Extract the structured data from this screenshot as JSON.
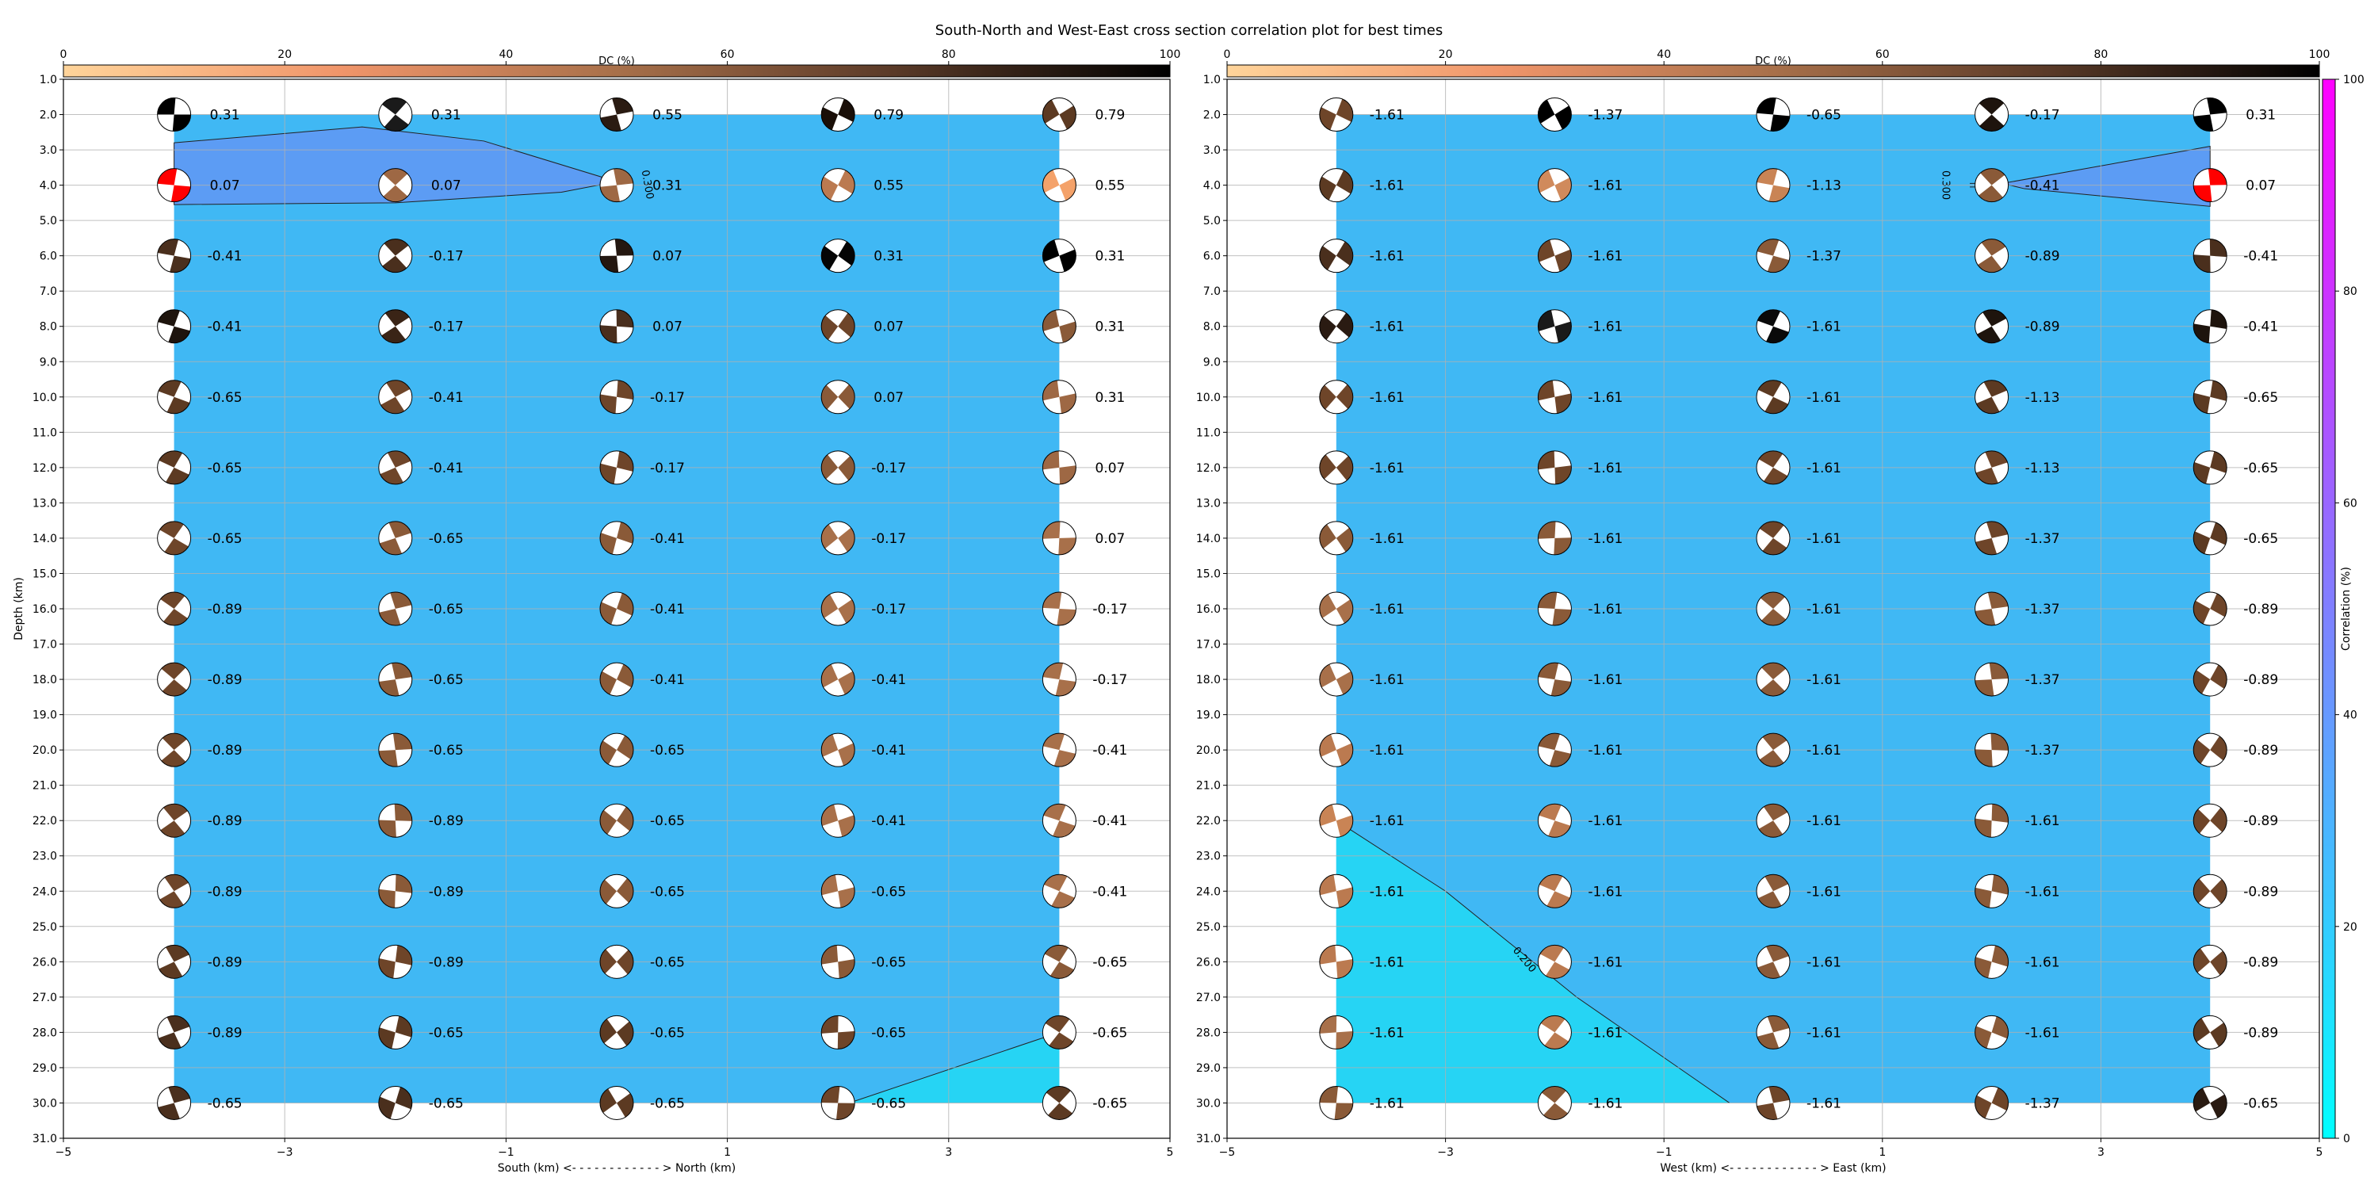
{
  "title": "South-North and West-East cross section correlation plot for best times",
  "dc_colorbar": {
    "label": "DC (%)",
    "ticks": [
      0,
      20,
      40,
      60,
      80,
      100
    ]
  },
  "corr_colorbar": {
    "label": "Correlation (%)",
    "ticks": [
      0,
      20,
      40,
      60,
      80,
      100
    ],
    "colors": [
      "#00ffff",
      "#ff00ff"
    ]
  },
  "chart_data": [
    {
      "type": "heatmap",
      "name_hint": "south-north",
      "xlabel": "South (km) <- - - - - - - - - - - - > North (km)",
      "ylabel": "Depth (km)",
      "xlim": [
        -5,
        5
      ],
      "ylim": [
        31,
        1
      ],
      "xticks": [
        -5,
        -3,
        -1,
        1,
        3,
        5
      ],
      "yticks": [
        1,
        2,
        3,
        4,
        5,
        6,
        7,
        8,
        9,
        10,
        11,
        12,
        13,
        14,
        15,
        16,
        17,
        18,
        19,
        20,
        21,
        22,
        23,
        24,
        25,
        26,
        27,
        28,
        29,
        30,
        31
      ],
      "grid": true,
      "x": [
        -4,
        -2,
        0,
        2,
        4
      ],
      "depths": [
        2,
        4,
        6,
        8,
        10,
        12,
        14,
        16,
        18,
        20,
        22,
        24,
        26,
        28,
        30
      ],
      "contour_labels": [
        {
          "text": "0.300"
        }
      ],
      "values": [
        [
          "0.31",
          "0.31",
          "0.55",
          "0.79",
          "0.79"
        ],
        [
          "0.07",
          "0.07",
          "0.31",
          "0.55",
          "0.55"
        ],
        [
          "-0.41",
          "-0.17",
          "0.07",
          "0.31",
          "0.31"
        ],
        [
          "-0.41",
          "-0.17",
          "0.07",
          "0.07",
          "0.31"
        ],
        [
          "-0.65",
          "-0.41",
          "-0.17",
          "0.07",
          "0.31"
        ],
        [
          "-0.65",
          "-0.41",
          "-0.17",
          "-0.17",
          "0.07"
        ],
        [
          "-0.65",
          "-0.65",
          "-0.41",
          "-0.17",
          "0.07"
        ],
        [
          "-0.89",
          "-0.65",
          "-0.41",
          "-0.17",
          "-0.17"
        ],
        [
          "-0.89",
          "-0.65",
          "-0.41",
          "-0.41",
          "-0.17"
        ],
        [
          "-0.89",
          "-0.65",
          "-0.65",
          "-0.41",
          "-0.41"
        ],
        [
          "-0.89",
          "-0.89",
          "-0.65",
          "-0.41",
          "-0.41"
        ],
        [
          "-0.89",
          "-0.89",
          "-0.65",
          "-0.65",
          "-0.41"
        ],
        [
          "-0.89",
          "-0.89",
          "-0.65",
          "-0.65",
          "-0.65"
        ],
        [
          "-0.89",
          "-0.65",
          "-0.65",
          "-0.65",
          "-0.65"
        ],
        [
          "-0.65",
          "-0.65",
          "-0.65",
          "-0.65",
          "-0.65"
        ]
      ],
      "beachball_colors": [
        [
          "#000000",
          "#1a1a1a",
          "#2a1b12",
          "#1a0f08",
          "#5c3a22"
        ],
        [
          "#ff0000",
          "#9e6844",
          "#9e6844",
          "#bb7a50",
          "#f4a26a"
        ],
        [
          "#4a2f1d",
          "#4a2f1d",
          "#241710",
          "#050505",
          "#000000"
        ],
        [
          "#1e140d",
          "#3a2416",
          "#4a2f1d",
          "#6e4529",
          "#8a5a38"
        ],
        [
          "#5c3a22",
          "#6e4529",
          "#6e4529",
          "#8a5a38",
          "#9e6844"
        ],
        [
          "#5c3a22",
          "#6e4529",
          "#6e4529",
          "#8a5a38",
          "#9e6844"
        ],
        [
          "#6e4529",
          "#8a5a38",
          "#8a5a38",
          "#a8704a",
          "#a8704a"
        ],
        [
          "#6e4529",
          "#8a5a38",
          "#8a5a38",
          "#a8704a",
          "#a8704a"
        ],
        [
          "#6e4529",
          "#8a5a38",
          "#8a5a38",
          "#a8704a",
          "#a8704a"
        ],
        [
          "#6e4529",
          "#8a5a38",
          "#8a5a38",
          "#a8704a",
          "#a8704a"
        ],
        [
          "#6e4529",
          "#8a5a38",
          "#8a5a38",
          "#a8704a",
          "#a8704a"
        ],
        [
          "#6e4529",
          "#8a5a38",
          "#8a5a38",
          "#a8704a",
          "#a8704a"
        ],
        [
          "#5c3a22",
          "#6e4529",
          "#6e4529",
          "#8a5a38",
          "#8a5a38"
        ],
        [
          "#4a2f1d",
          "#5c3a22",
          "#5c3a22",
          "#6e4529",
          "#6e4529"
        ],
        [
          "#4a2f1d",
          "#4a2f1d",
          "#5c3a22",
          "#6e4529",
          "#5c3a22"
        ]
      ]
    },
    {
      "type": "heatmap",
      "name_hint": "west-east",
      "xlabel": "West (km) <- - - - - - - - - - - - > East (km)",
      "ylabel": "",
      "xlim": [
        -5,
        5
      ],
      "ylim": [
        31,
        1
      ],
      "xticks": [
        -5,
        -3,
        -1,
        1,
        3,
        5
      ],
      "yticks": [
        1,
        2,
        3,
        4,
        5,
        6,
        7,
        8,
        9,
        10,
        11,
        12,
        13,
        14,
        15,
        16,
        17,
        18,
        19,
        20,
        21,
        22,
        23,
        24,
        25,
        26,
        27,
        28,
        29,
        30,
        31
      ],
      "grid": true,
      "x": [
        -4,
        -2,
        0,
        2,
        4
      ],
      "depths": [
        2,
        4,
        6,
        8,
        10,
        12,
        14,
        16,
        18,
        20,
        22,
        24,
        26,
        28,
        30
      ],
      "contour_labels": [
        {
          "text": "0.300"
        },
        {
          "text": "0.200"
        }
      ],
      "values": [
        [
          "-1.61",
          "-1.37",
          "-0.65",
          "-0.17",
          "0.31"
        ],
        [
          "-1.61",
          "-1.61",
          "-1.13",
          "-0.41",
          "0.07"
        ],
        [
          "-1.61",
          "-1.61",
          "-1.37",
          "-0.89",
          "-0.41"
        ],
        [
          "-1.61",
          "-1.61",
          "-1.61",
          "-0.89",
          "-0.41"
        ],
        [
          "-1.61",
          "-1.61",
          "-1.61",
          "-1.13",
          "-0.65"
        ],
        [
          "-1.61",
          "-1.61",
          "-1.61",
          "-1.13",
          "-0.65"
        ],
        [
          "-1.61",
          "-1.61",
          "-1.61",
          "-1.37",
          "-0.65"
        ],
        [
          "-1.61",
          "-1.61",
          "-1.61",
          "-1.37",
          "-0.89"
        ],
        [
          "-1.61",
          "-1.61",
          "-1.61",
          "-1.37",
          "-0.89"
        ],
        [
          "-1.61",
          "-1.61",
          "-1.61",
          "-1.37",
          "-0.89"
        ],
        [
          "-1.61",
          "-1.61",
          "-1.61",
          "-1.61",
          "-0.89"
        ],
        [
          "-1.61",
          "-1.61",
          "-1.61",
          "-1.61",
          "-0.89"
        ],
        [
          "-1.61",
          "-1.61",
          "-1.61",
          "-1.61",
          "-0.89"
        ],
        [
          "-1.61",
          "-1.61",
          "-1.61",
          "-1.61",
          "-0.89"
        ],
        [
          "-1.61",
          "-1.61",
          "-1.61",
          "-1.37",
          "-0.65"
        ]
      ],
      "beachball_colors": [
        [
          "#6e4529",
          "#000000",
          "#000000",
          "#1e140d",
          "#000000"
        ],
        [
          "#5c3a22",
          "#d08a5c",
          "#c98455",
          "#8a5a38",
          "#ff0000"
        ],
        [
          "#4a2f1d",
          "#6e4529",
          "#8a5a38",
          "#8a5a38",
          "#4a2f1d"
        ],
        [
          "#2a1b12",
          "#1a1a1a",
          "#0a0a0a",
          "#1e140d",
          "#1e140d"
        ],
        [
          "#6e4529",
          "#6e4529",
          "#5c3a22",
          "#5c3a22",
          "#5c3a22"
        ],
        [
          "#6e4529",
          "#6e4529",
          "#6e4529",
          "#6e4529",
          "#5c3a22"
        ],
        [
          "#8a5a38",
          "#8a5a38",
          "#6e4529",
          "#6e4529",
          "#5c3a22"
        ],
        [
          "#a8704a",
          "#8a5a38",
          "#8a5a38",
          "#8a5a38",
          "#6e4529"
        ],
        [
          "#a8704a",
          "#8a5a38",
          "#8a5a38",
          "#8a5a38",
          "#6e4529"
        ],
        [
          "#bb7a50",
          "#8a5a38",
          "#8a5a38",
          "#8a5a38",
          "#6e4529"
        ],
        [
          "#c98455",
          "#bb7a50",
          "#8a5a38",
          "#8a5a38",
          "#6e4529"
        ],
        [
          "#bb7a50",
          "#bb7a50",
          "#8a5a38",
          "#8a5a38",
          "#6e4529"
        ],
        [
          "#bb7a50",
          "#bb7a50",
          "#8a5a38",
          "#8a5a38",
          "#6e4529"
        ],
        [
          "#a8704a",
          "#bb7a50",
          "#8a5a38",
          "#8a5a38",
          "#5c3a22"
        ],
        [
          "#8a5a38",
          "#8a5a38",
          "#6e4529",
          "#6e4529",
          "#2a1b12"
        ]
      ]
    }
  ]
}
